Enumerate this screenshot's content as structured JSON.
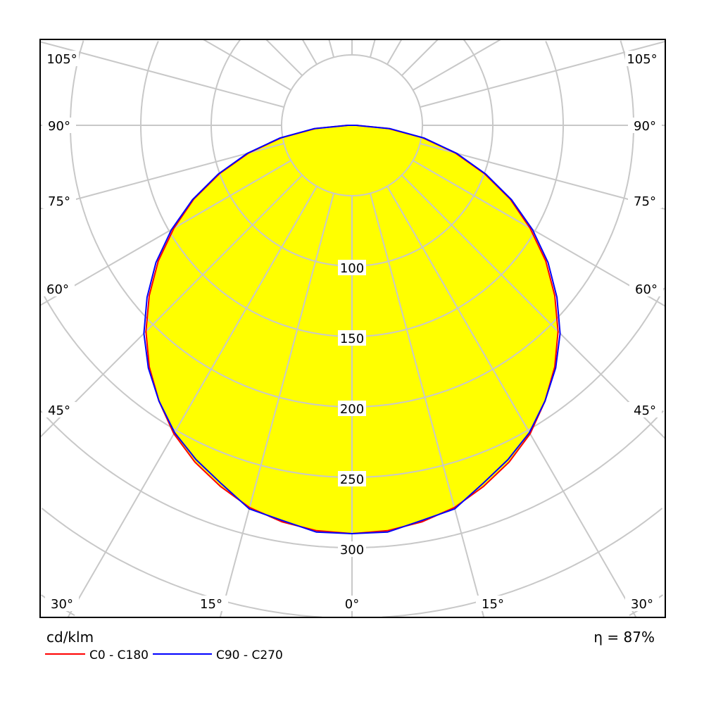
{
  "chart_data": {
    "type": "polar",
    "unit_label": "cd/klm",
    "efficiency_label": "η = 87%",
    "radial_ticks": [
      50,
      100,
      150,
      200,
      250,
      300,
      350,
      400,
      450
    ],
    "radial_tick_labels": [
      "100",
      "150",
      "200",
      "250",
      "300"
    ],
    "angle_labels_left": [
      "105°",
      "90°",
      "75°",
      "60°",
      "45°",
      "30°",
      "15°"
    ],
    "angle_labels_right": [
      "105°",
      "90°",
      "75°",
      "60°",
      "45°",
      "30°",
      "15°"
    ],
    "angle_label_center": "0°",
    "grid_angle_step_deg": 15,
    "fill_color": "#ffff00",
    "grid_color": "#c8c8c8",
    "angles_deg": [
      0,
      5,
      10,
      15,
      20,
      25,
      30,
      35,
      40,
      45,
      50,
      55,
      60,
      65,
      70,
      75,
      80,
      85,
      90
    ],
    "series": [
      {
        "name": "C0 - C180",
        "color": "#ff0000",
        "values": [
          290,
          289,
          286,
          281,
          273,
          264,
          253,
          239,
          224,
          207,
          188,
          168,
          146,
          124,
          100,
          76,
          51,
          26,
          3
        ]
      },
      {
        "name": "C90 - C270",
        "color": "#0000ff",
        "values": [
          290,
          290,
          285,
          282,
          271,
          262,
          252,
          239,
          225,
          209,
          190,
          170,
          148,
          125,
          101,
          77,
          52,
          27,
          3
        ]
      }
    ]
  }
}
